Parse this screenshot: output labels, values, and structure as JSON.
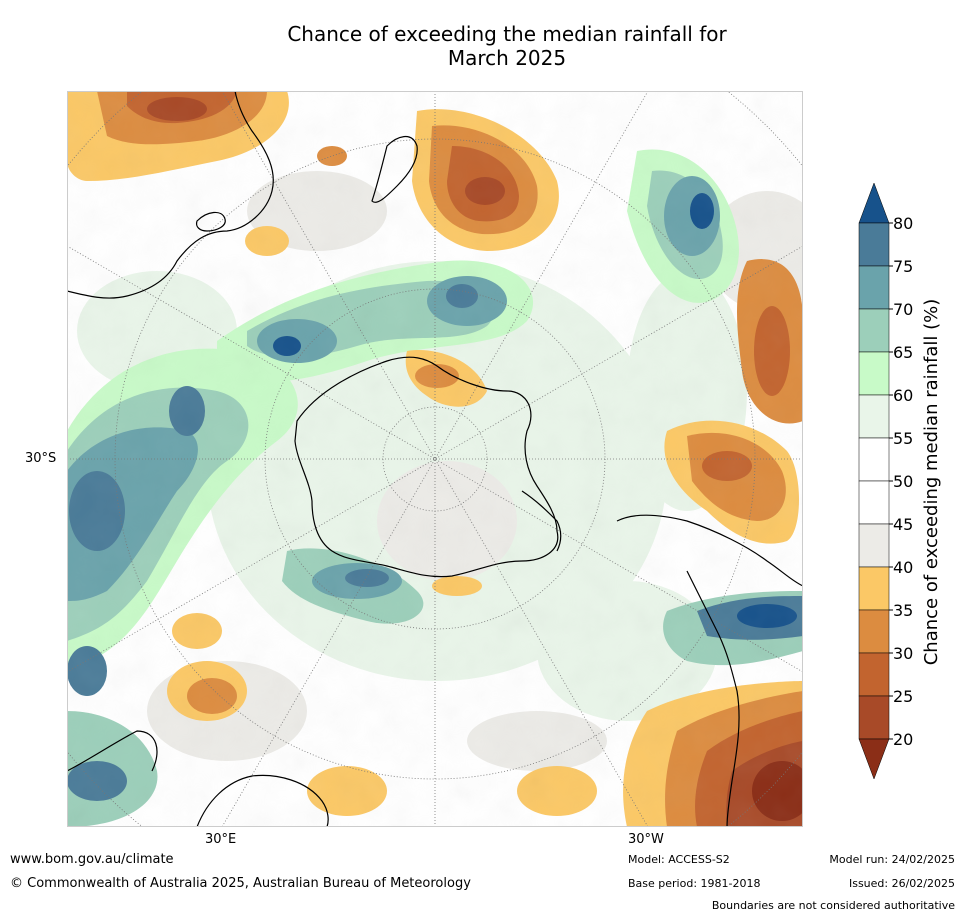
{
  "title": {
    "line1": "Chance of exceeding the median rainfall for",
    "line2": "March 2025"
  },
  "map": {
    "projection": "south-polar-stereographic",
    "labels": {
      "lat_left": "30°S",
      "lon_left": "30°E",
      "lon_right": "30°W"
    }
  },
  "colorbar": {
    "label": "Chance of exceeding median rainfall (%)",
    "ticks": [
      "20",
      "25",
      "30",
      "35",
      "40",
      "45",
      "50",
      "55",
      "60",
      "65",
      "70",
      "75",
      "80"
    ],
    "colors": [
      "#8b2e17",
      "#a84a28",
      "#c2642f",
      "#dc8c40",
      "#fbc866",
      "#ecebe7",
      "#ffffff",
      "#ffffff",
      "#e9f5e9",
      "#c8fac8",
      "#9ccfba",
      "#6aa3ab",
      "#4a7b98",
      "#17528b"
    ],
    "lower_extend_color": "#8b2e17",
    "upper_extend_color": "#17528b"
  },
  "footer": {
    "url": "www.bom.gov.au/climate",
    "copyright": "© Commonwealth of Australia 2025, Australian Bureau of Meteorology",
    "model": "Model: ACCESS-S2",
    "base_period": "Base period: 1981-2018",
    "model_run": "Model run: 24/02/2025",
    "issued": "Issued: 26/02/2025",
    "disclaimer": "Boundaries are not considered authoritative"
  }
}
